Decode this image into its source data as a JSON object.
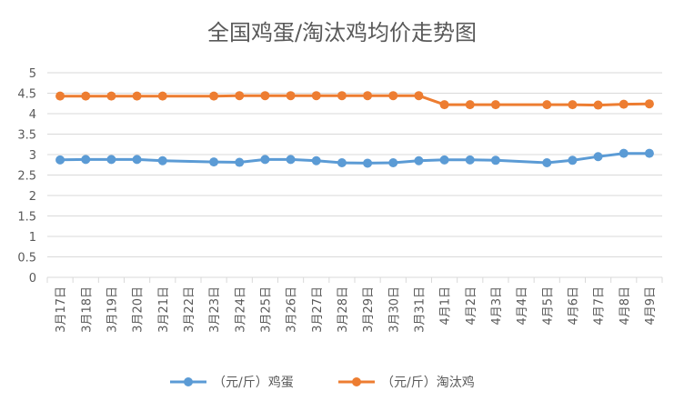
{
  "chart_data": {
    "type": "line",
    "title": "全国鸡蛋/淘汰鸡均价走势图",
    "xlabel": "",
    "ylabel": "",
    "ylim": [
      0,
      5
    ],
    "yticks": [
      "0",
      "0.5",
      "1",
      "1.5",
      "2",
      "2.5",
      "3",
      "3.5",
      "4",
      "4.5",
      "5"
    ],
    "grid": true,
    "legend_position": "bottom",
    "categories": [
      "3月17日",
      "3月18日",
      "3月19日",
      "3月20日",
      "3月21日",
      "3月22日",
      "3月23日",
      "3月24日",
      "3月25日",
      "3月26日",
      "3月27日",
      "3月28日",
      "3月29日",
      "3月30日",
      "3月31日",
      "4月1日",
      "4月2日",
      "4月3日",
      "4月4日",
      "4月5日",
      "4月6日",
      "4月7日",
      "4月8日",
      "4月9日"
    ],
    "series": [
      {
        "name": "（元/斤）鸡蛋",
        "color": "#5b9bd5",
        "values": [
          2.87,
          2.88,
          2.88,
          2.88,
          2.85,
          null,
          2.82,
          2.81,
          2.88,
          2.88,
          2.85,
          2.8,
          2.79,
          2.8,
          2.85,
          2.87,
          2.87,
          2.86,
          null,
          2.8,
          2.86,
          2.95,
          3.03,
          3.03
        ]
      },
      {
        "name": "（元/斤）淘汰鸡",
        "color": "#ed7d31",
        "values": [
          4.43,
          4.43,
          4.43,
          4.43,
          4.43,
          null,
          4.43,
          4.44,
          4.44,
          4.44,
          4.44,
          4.44,
          4.44,
          4.44,
          4.44,
          4.22,
          4.22,
          4.22,
          null,
          4.22,
          4.22,
          4.21,
          4.23,
          4.24
        ]
      }
    ]
  }
}
